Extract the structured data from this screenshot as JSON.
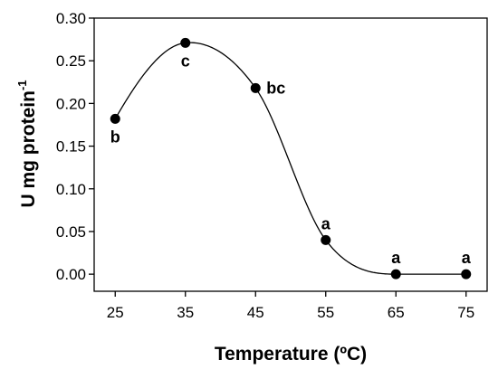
{
  "chart_data": {
    "type": "scatter",
    "title": "",
    "xlabel": "Temperature (ºC)",
    "ylabel_main": "U mg protein",
    "ylabel_sup": "-1",
    "x": [
      25,
      35,
      45,
      55,
      65,
      75
    ],
    "y": [
      0.182,
      0.271,
      0.218,
      0.04,
      0.0,
      0.0
    ],
    "point_labels": [
      "b",
      "c",
      "bc",
      "a",
      "a",
      "a"
    ],
    "label_positions": [
      "below",
      "below",
      "right",
      "above",
      "above",
      "above"
    ],
    "xlim": [
      22,
      78
    ],
    "ylim": [
      -0.02,
      0.3
    ],
    "xticks": [
      25,
      35,
      45,
      55,
      65,
      75
    ],
    "xtick_labels": [
      "25",
      "35",
      "45",
      "55",
      "65",
      "75"
    ],
    "yticks": [
      0.0,
      0.05,
      0.1,
      0.15,
      0.2,
      0.25,
      0.3
    ],
    "ytick_labels": [
      "0.00",
      "0.05",
      "0.10",
      "0.15",
      "0.20",
      "0.25",
      "0.30"
    ],
    "curve": "smooth fitted line through the points",
    "grid": false,
    "legend": "none",
    "colors": {
      "points": "#000000",
      "line": "#000000",
      "axis": "#000000",
      "background": "#ffffff"
    }
  }
}
